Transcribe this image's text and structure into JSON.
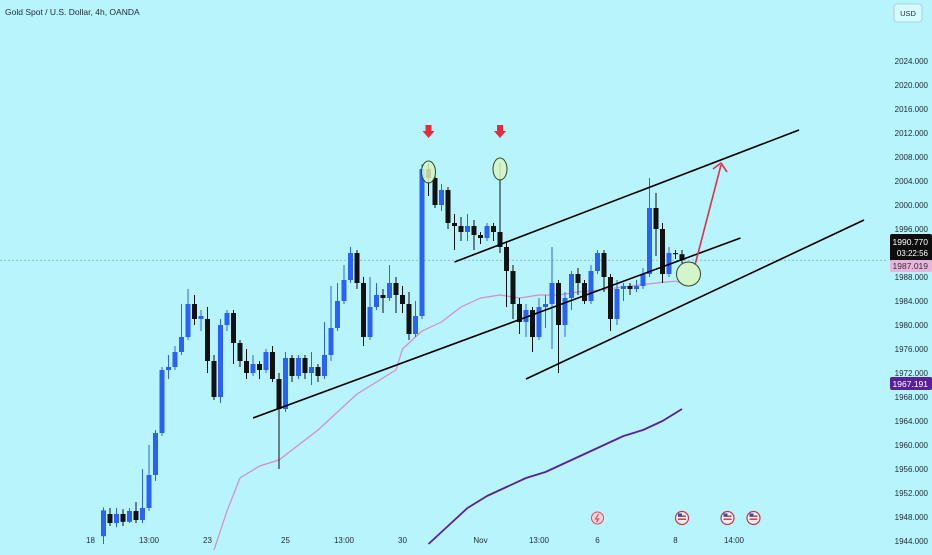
{
  "header": {
    "title": "Gold Spot / U.S. Dollar, 4h, OANDA"
  },
  "currency_button": {
    "label": "USD"
  },
  "price_labels": {
    "last_price": "1990.770",
    "countdown": "03:22:56",
    "ma_short": "1987.019",
    "ma_long": "1967.191"
  },
  "colors": {
    "background": "#b8f4fb",
    "bull": "#2a62f5",
    "bear": "#111111",
    "ma_short": "#d98ac8",
    "ma_long": "#5a1f9a",
    "arrow_down": "#e52c3a",
    "arrow_up": "#e0304a",
    "highlight": "#d8f5bd"
  },
  "chart_data": {
    "type": "candlestick",
    "symbol": "Gold Spot / U.S. Dollar",
    "interval": "4h",
    "source": "OANDA",
    "currency": "USD",
    "ylim": [
      1943,
      2031
    ],
    "y_ticks": [
      "1944.000",
      "1948.000",
      "1952.000",
      "1956.000",
      "1960.000",
      "1964.000",
      "1968.000",
      "1972.000",
      "1976.000",
      "1980.000",
      "1984.000",
      "1988.000",
      "1992.000",
      "1996.000",
      "2000.000",
      "2004.000",
      "2008.000",
      "2012.000",
      "2016.000",
      "2020.000",
      "2024.000"
    ],
    "x_ticks": [
      {
        "label": "18",
        "i": -2
      },
      {
        "label": "13:00",
        "i": 7
      },
      {
        "label": "23",
        "i": 16
      },
      {
        "label": "25",
        "i": 28
      },
      {
        "label": "13:00",
        "i": 37
      },
      {
        "label": "30",
        "i": 46
      },
      {
        "label": "Nov",
        "i": 58
      },
      {
        "label": "13:00",
        "i": 67
      },
      {
        "label": "6",
        "i": 76
      },
      {
        "label": "8",
        "i": 88
      },
      {
        "label": "14:00",
        "i": 97
      }
    ],
    "candles": [
      [
        1944.8,
        1949.1,
        1943.5,
        1949.6
      ],
      [
        1948.5,
        1947.0,
        1946.5,
        1949.5
      ],
      [
        1947.0,
        1948.5,
        1946.3,
        1949.5
      ],
      [
        1948.5,
        1947.2,
        1946.5,
        1949.3
      ],
      [
        1947.2,
        1949.0,
        1947.0,
        1949.5
      ],
      [
        1949.0,
        1947.5,
        1947.0,
        1950.5
      ],
      [
        1947.5,
        1949.5,
        1947.0,
        1956.0
      ],
      [
        1949.5,
        1955.0,
        1949.0,
        1960.0
      ],
      [
        1955.0,
        1962.0,
        1954.0,
        1962.5
      ],
      [
        1962.0,
        1972.5,
        1961.5,
        1973.0
      ],
      [
        1972.5,
        1973.0,
        1971.0,
        1975.0
      ],
      [
        1973.0,
        1975.5,
        1972.5,
        1976.5
      ],
      [
        1975.5,
        1978.0,
        1975.0,
        1983.5
      ],
      [
        1978.0,
        1983.5,
        1977.5,
        1986.0
      ],
      [
        1983.5,
        1981.0,
        1980.0,
        1985.0
      ],
      [
        1981.0,
        1981.5,
        1979.0,
        1982.5
      ],
      [
        1981.0,
        1974.0,
        1972.0,
        1983.0
      ],
      [
        1974.0,
        1968.0,
        1967.5,
        1975.0
      ],
      [
        1968.0,
        1980.0,
        1967.0,
        1981.0
      ],
      [
        1980.0,
        1982.0,
        1979.0,
        1982.5
      ],
      [
        1982.0,
        1977.0,
        1973.5,
        1982.5
      ],
      [
        1977.0,
        1974.0,
        1973.0,
        1977.5
      ],
      [
        1974.0,
        1972.0,
        1971.0,
        1976.0
      ],
      [
        1972.0,
        1973.5,
        1971.5,
        1975.0
      ],
      [
        1973.5,
        1972.5,
        1971.0,
        1974.0
      ],
      [
        1972.5,
        1975.5,
        1972.0,
        1976.0
      ],
      [
        1975.5,
        1971.0,
        1970.5,
        1976.5
      ],
      [
        1971.0,
        1966.0,
        1956.0,
        1972.0
      ],
      [
        1966.0,
        1974.5,
        1965.5,
        1975.5
      ],
      [
        1974.5,
        1971.5,
        1970.5,
        1975.0
      ],
      [
        1971.5,
        1974.5,
        1971.0,
        1975.0
      ],
      [
        1974.5,
        1972.0,
        1971.0,
        1975.0
      ],
      [
        1972.0,
        1973.0,
        1970.0,
        1975.5
      ],
      [
        1973.0,
        1971.5,
        1970.5,
        1973.5
      ],
      [
        1971.5,
        1975.0,
        1971.0,
        1980.5
      ],
      [
        1975.0,
        1979.5,
        1974.0,
        1986.5
      ],
      [
        1979.5,
        1984.0,
        1979.0,
        1987.0
      ],
      [
        1984.0,
        1987.5,
        1983.5,
        1990.0
      ],
      [
        1987.5,
        1992.0,
        1987.0,
        1993.0
      ],
      [
        1992.0,
        1987.0,
        1986.0,
        1992.5
      ],
      [
        1987.0,
        1978.0,
        1976.5,
        1988.0
      ],
      [
        1978.0,
        1983.0,
        1977.5,
        1988.0
      ],
      [
        1983.0,
        1985.0,
        1982.5,
        1987.0
      ],
      [
        1985.0,
        1984.5,
        1982.0,
        1986.0
      ],
      [
        1984.5,
        1987.0,
        1984.0,
        1990.0
      ],
      [
        1987.0,
        1985.0,
        1982.0,
        1988.0
      ],
      [
        1985.0,
        1983.5,
        1982.0,
        1986.5
      ],
      [
        1983.5,
        1978.5,
        1977.5,
        1985.5
      ],
      [
        1978.5,
        1981.5,
        1978.0,
        1984.0
      ],
      [
        1981.5,
        2006.0,
        1981.0,
        2006.8
      ],
      [
        2006.0,
        2004.5,
        2001.5,
        2007.0
      ],
      [
        2004.5,
        2000.0,
        1999.5,
        2005.0
      ],
      [
        2000.0,
        2002.5,
        1999.0,
        2003.5
      ],
      [
        2002.5,
        1997.0,
        1996.0,
        2003.0
      ],
      [
        1997.0,
        1996.5,
        1992.5,
        1998.5
      ],
      [
        1996.5,
        1995.5,
        1994.0,
        1998.0
      ],
      [
        1995.5,
        1996.5,
        1994.0,
        1998.5
      ],
      [
        1996.5,
        1995.0,
        1992.5,
        1997.5
      ],
      [
        1995.0,
        1994.5,
        1993.5,
        1995.5
      ],
      [
        1994.5,
        1996.5,
        1994.0,
        1997.0
      ],
      [
        1996.5,
        1995.5,
        1994.0,
        1997.0
      ],
      [
        1995.5,
        1993.0,
        1992.0,
        2007.0
      ],
      [
        1993.0,
        1989.0,
        1983.0,
        1994.0
      ],
      [
        1989.0,
        1983.5,
        1981.0,
        1990.0
      ],
      [
        1983.5,
        1980.5,
        1978.5,
        1984.5
      ],
      [
        1980.5,
        1982.5,
        1978.0,
        1983.5
      ],
      [
        1982.5,
        1978.0,
        1975.5,
        1983.0
      ],
      [
        1978.0,
        1983.0,
        1977.5,
        1984.5
      ],
      [
        1983.0,
        1983.5,
        1979.5,
        1985.0
      ],
      [
        1983.5,
        1987.0,
        1976.0,
        1993.0
      ],
      [
        1987.0,
        1980.0,
        1972.0,
        1987.5
      ],
      [
        1980.0,
        1984.5,
        1978.0,
        1985.5
      ],
      [
        1984.5,
        1988.5,
        1982.5,
        1989.0
      ],
      [
        1988.5,
        1987.0,
        1985.0,
        1989.5
      ],
      [
        1987.0,
        1984.0,
        1983.5,
        1987.5
      ],
      [
        1984.0,
        1989.0,
        1983.5,
        1990.0
      ],
      [
        1989.0,
        1992.0,
        1988.5,
        1992.5
      ],
      [
        1992.0,
        1988.0,
        1985.5,
        1992.5
      ],
      [
        1988.0,
        1981.0,
        1979.0,
        1988.5
      ],
      [
        1981.0,
        1986.0,
        1980.0,
        1987.5
      ],
      [
        1986.0,
        1986.5,
        1984.0,
        1987.0
      ],
      [
        1986.5,
        1986.0,
        1985.0,
        1987.0
      ],
      [
        1986.0,
        1986.5,
        1985.5,
        1987.5
      ],
      [
        1986.5,
        1988.5,
        1986.0,
        1989.5
      ],
      [
        1988.5,
        1999.5,
        1988.0,
        2004.5
      ],
      [
        1999.5,
        1996.0,
        1991.5,
        2002.0
      ],
      [
        1996.0,
        1988.5,
        1987.0,
        1997.0
      ],
      [
        1988.5,
        1992.0,
        1988.0,
        1993.0
      ],
      [
        1992.0,
        1991.8,
        1991.0,
        1992.5
      ],
      [
        1991.8,
        1990.8,
        1990.3,
        1992.5
      ]
    ],
    "ma_short_values": [
      [
        17,
        1942.5
      ],
      [
        19,
        1949.0
      ],
      [
        21,
        1954.5
      ],
      [
        24,
        1956.5
      ],
      [
        27,
        1957.5
      ],
      [
        30,
        1960.0
      ],
      [
        33,
        1962.5
      ],
      [
        36,
        1965.5
      ],
      [
        39,
        1968.5
      ],
      [
        42,
        1970.5
      ],
      [
        45,
        1972.5
      ],
      [
        46,
        1976.0
      ],
      [
        49,
        1979.0
      ],
      [
        52,
        1980.5
      ],
      [
        55,
        1983.0
      ],
      [
        58,
        1984.5
      ],
      [
        61,
        1985.0
      ],
      [
        64,
        1984.5
      ],
      [
        67,
        1985.0
      ],
      [
        70,
        1985.0
      ],
      [
        73,
        1985.5
      ],
      [
        76,
        1985.8
      ],
      [
        79,
        1986.2
      ],
      [
        82,
        1986.6
      ],
      [
        85,
        1987.0
      ],
      [
        88,
        1987.3
      ],
      [
        89,
        1987.0
      ]
    ],
    "ma_long_values": [
      [
        50,
        1943.5
      ],
      [
        53,
        1946.5
      ],
      [
        56,
        1949.5
      ],
      [
        59,
        1951.5
      ],
      [
        62,
        1953.0
      ],
      [
        65,
        1954.5
      ],
      [
        68,
        1955.5
      ],
      [
        71,
        1957.0
      ],
      [
        74,
        1958.5
      ],
      [
        77,
        1960.0
      ],
      [
        80,
        1961.5
      ],
      [
        83,
        1962.5
      ],
      [
        86,
        1964.0
      ],
      [
        89,
        1966.0
      ]
    ],
    "channel": {
      "lower_line": [
        [
          23,
          1964.5
        ],
        [
          98,
          1994.5
        ]
      ],
      "upper_line": [
        [
          54,
          1990.5
        ],
        [
          107,
          2012.5
        ]
      ],
      "support_line": [
        [
          65,
          1971.0
        ],
        [
          117,
          1997.5
        ]
      ]
    },
    "annotations": {
      "down_arrows_at": [
        [
          50,
          2012.0
        ],
        [
          61,
          2012.0
        ]
      ],
      "circles_at": [
        [
          50,
          2005.5
        ],
        [
          61,
          2006.0
        ],
        [
          90,
          1988.5
        ]
      ],
      "up_arrow": [
        [
          91,
          1990.0
        ],
        [
          95,
          2007.0
        ]
      ]
    },
    "event_icons_at": [
      76,
      89,
      96,
      100
    ]
  }
}
